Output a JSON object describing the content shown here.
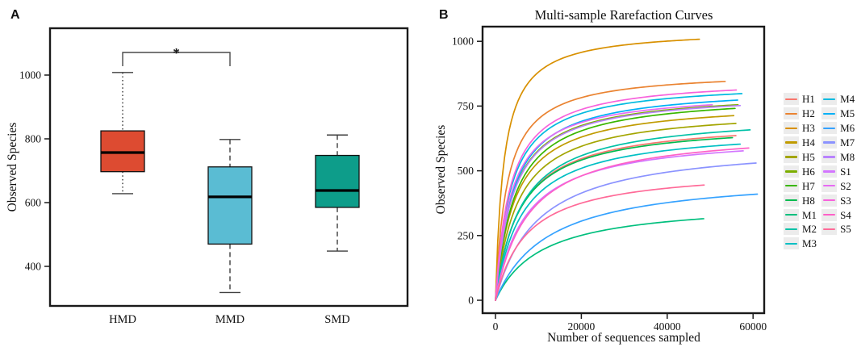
{
  "figure": {
    "background": "#ffffff",
    "axis_color": "#1a1a1a",
    "whisker_color": "#3d3d3d",
    "bracket_color": "#4a4a4a",
    "legend_key_bg": "#ececec"
  },
  "chart_data": [
    {
      "id": "A",
      "type": "boxplot",
      "panel_label": "A",
      "ylabel": "Observed Species",
      "categories": [
        "HMD",
        "MMD",
        "SMD"
      ],
      "y_ticks": [
        "400",
        "600",
        "800",
        "1000"
      ],
      "ylim": [
        273,
        1147
      ],
      "grid": false,
      "boxes": [
        {
          "label": "HMD",
          "color": "#DD4B31",
          "min": 628,
          "q1": 697,
          "median": 757,
          "q3": 825,
          "max": 1008,
          "whisker_style": "dotted"
        },
        {
          "label": "MMD",
          "color": "#5ABCD3",
          "min": 318,
          "q1": 470,
          "median": 618,
          "q3": 712,
          "max": 798,
          "whisker_style": "dashed"
        },
        {
          "label": "SMD",
          "color": "#0D9D8A",
          "min": 448,
          "q1": 585,
          "median": 638,
          "q3": 748,
          "max": 812,
          "whisker_style": "dashed"
        }
      ],
      "significance": {
        "groups": [
          "HMD",
          "MMD"
        ],
        "label": "*"
      }
    },
    {
      "id": "B",
      "type": "line",
      "panel_label": "B",
      "title": "Multi-sample Rarefaction Curves",
      "xlabel": "Number of sequences sampled",
      "ylabel": "Observed Species",
      "x_ticks": [
        "0",
        "20000",
        "40000",
        "60000"
      ],
      "y_ticks": [
        "0",
        "250",
        "500",
        "750",
        "1000"
      ],
      "xlim": [
        0,
        63000
      ],
      "ylim": [
        -50,
        1056
      ],
      "grid": false,
      "legend_position": "right",
      "legend_columns": [
        11,
        10
      ],
      "curve_model": "y = y_end * t*(1+b)/(t+b), t = x/x_end",
      "series": [
        {
          "name": "H1",
          "color": "#F8766D",
          "x_end": 56000,
          "y_end": 636,
          "b": 0.1
        },
        {
          "name": "H2",
          "color": "#EA8331",
          "x_end": 53500,
          "y_end": 845,
          "b": 0.05
        },
        {
          "name": "H3",
          "color": "#D89000",
          "x_end": 47500,
          "y_end": 1008,
          "b": 0.04
        },
        {
          "name": "H4",
          "color": "#C09B00",
          "x_end": 55500,
          "y_end": 713,
          "b": 0.08
        },
        {
          "name": "H5",
          "color": "#A3A500",
          "x_end": 56000,
          "y_end": 683,
          "b": 0.09
        },
        {
          "name": "H6",
          "color": "#7CAE00",
          "x_end": 56500,
          "y_end": 755,
          "b": 0.07
        },
        {
          "name": "H7",
          "color": "#39B600",
          "x_end": 55800,
          "y_end": 741,
          "b": 0.08
        },
        {
          "name": "H8",
          "color": "#00BB4E",
          "x_end": 55200,
          "y_end": 628,
          "b": 0.1
        },
        {
          "name": "M1",
          "color": "#00BF7D",
          "x_end": 48500,
          "y_end": 315,
          "b": 0.22
        },
        {
          "name": "M2",
          "color": "#00C1A7",
          "x_end": 59300,
          "y_end": 658,
          "b": 0.1
        },
        {
          "name": "M3",
          "color": "#00BFC4",
          "x_end": 57000,
          "y_end": 603,
          "b": 0.11
        },
        {
          "name": "M4",
          "color": "#00BAE0",
          "x_end": 57400,
          "y_end": 798,
          "b": 0.06
        },
        {
          "name": "M5",
          "color": "#00B0F6",
          "x_end": 56400,
          "y_end": 773,
          "b": 0.07
        },
        {
          "name": "M6",
          "color": "#35A2FF",
          "x_end": 61000,
          "y_end": 410,
          "b": 0.2
        },
        {
          "name": "M7",
          "color": "#8B93FF",
          "x_end": 60700,
          "y_end": 530,
          "b": 0.16
        },
        {
          "name": "M8",
          "color": "#B983FF",
          "x_end": 57000,
          "y_end": 752,
          "b": 0.07
        },
        {
          "name": "S1",
          "color": "#D376FF",
          "x_end": 57700,
          "y_end": 577,
          "b": 0.12
        },
        {
          "name": "S2",
          "color": "#E76BF3",
          "x_end": 50500,
          "y_end": 755,
          "b": 0.07
        },
        {
          "name": "S3",
          "color": "#F762DC",
          "x_end": 56100,
          "y_end": 812,
          "b": 0.06
        },
        {
          "name": "S4",
          "color": "#FF61C7",
          "x_end": 59000,
          "y_end": 588,
          "b": 0.13
        },
        {
          "name": "S5",
          "color": "#FF6A98",
          "x_end": 48600,
          "y_end": 445,
          "b": 0.15
        }
      ]
    }
  ]
}
